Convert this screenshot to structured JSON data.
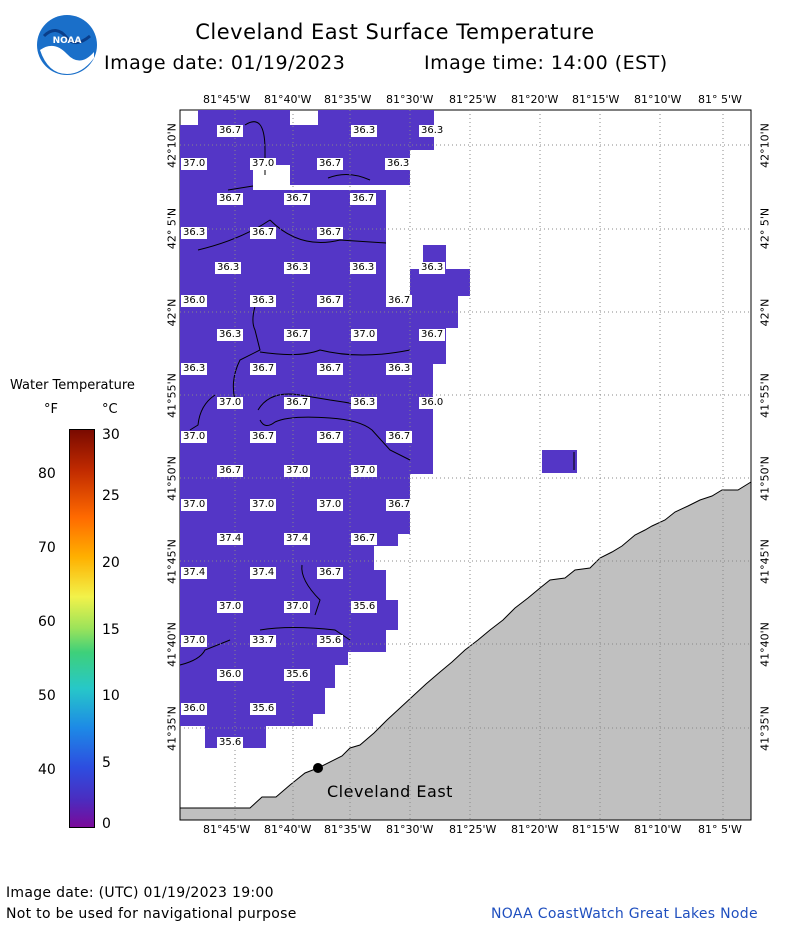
{
  "header": {
    "title": "Cleveland East Surface Temperature",
    "image_date": "Image date: 01/19/2023",
    "image_time": "Image time: 14:00 (EST)"
  },
  "logo": {
    "text": "NOAA"
  },
  "legend": {
    "title": "Water Temperature",
    "unit_f": "°F",
    "unit_c": "°C",
    "f_ticks": [
      "80",
      "70",
      "60",
      "50",
      "40"
    ],
    "c_ticks": [
      "30",
      "25",
      "20",
      "15",
      "10",
      "5",
      "0"
    ]
  },
  "map": {
    "lon_labels": [
      "81°45'W",
      "81°40'W",
      "81°35'W",
      "81°30'W",
      "81°25'W",
      "81°20'W",
      "81°15'W",
      "81°10'W",
      "81° 5'W"
    ],
    "lat_labels": [
      "42°10'N",
      "42° 5'N",
      "42°N",
      "41°55'N",
      "41°50'N",
      "41°45'N",
      "41°40'N",
      "41°35'N"
    ],
    "station_label": "Cleveland East",
    "colors": {
      "water": "#5436c6",
      "land": "#c0c0c0",
      "grid": "#888888"
    },
    "temperature_labels": [
      {
        "v": "36.7"
      },
      {
        "v": "36.3"
      },
      {
        "v": "36.3"
      },
      {
        "v": "37.0"
      },
      {
        "v": "37.0"
      },
      {
        "v": "36.7"
      },
      {
        "v": "36.3"
      },
      {
        "v": "36.7"
      },
      {
        "v": "36.7"
      },
      {
        "v": "36.7"
      },
      {
        "v": "36.3"
      },
      {
        "v": "36.7"
      },
      {
        "v": "36.7"
      },
      {
        "v": "36.3"
      },
      {
        "v": "36.3"
      },
      {
        "v": "36.3"
      },
      {
        "v": "36.3"
      },
      {
        "v": "36.0"
      },
      {
        "v": "36.3"
      },
      {
        "v": "36.7"
      },
      {
        "v": "36.7"
      },
      {
        "v": "36.3"
      },
      {
        "v": "36.7"
      },
      {
        "v": "37.0"
      },
      {
        "v": "36.7"
      },
      {
        "v": "36.3"
      },
      {
        "v": "36.7"
      },
      {
        "v": "36.7"
      },
      {
        "v": "36.3"
      },
      {
        "v": "37.0"
      },
      {
        "v": "36.7"
      },
      {
        "v": "36.3"
      },
      {
        "v": "36.0"
      },
      {
        "v": "37.0"
      },
      {
        "v": "36.7"
      },
      {
        "v": "36.7"
      },
      {
        "v": "36.7"
      },
      {
        "v": "36.7"
      },
      {
        "v": "37.0"
      },
      {
        "v": "37.0"
      },
      {
        "v": "37.0"
      },
      {
        "v": "37.0"
      },
      {
        "v": "37.0"
      },
      {
        "v": "36.7"
      },
      {
        "v": "37.4"
      },
      {
        "v": "37.4"
      },
      {
        "v": "36.7"
      },
      {
        "v": "37.4"
      },
      {
        "v": "37.4"
      },
      {
        "v": "36.7"
      },
      {
        "v": "37.0"
      },
      {
        "v": "37.0"
      },
      {
        "v": "35.6"
      },
      {
        "v": "37.0"
      },
      {
        "v": "33.7"
      },
      {
        "v": "35.6"
      },
      {
        "v": "36.0"
      },
      {
        "v": "35.6"
      },
      {
        "v": "36.0"
      },
      {
        "v": "35.6"
      },
      {
        "v": "35.6"
      }
    ]
  },
  "footer": {
    "utc": "Image date: (UTC) 01/19/2023  19:00",
    "disclaimer": "Not to be used for navigational purpose",
    "credit": "NOAA CoastWatch Great Lakes Node"
  }
}
